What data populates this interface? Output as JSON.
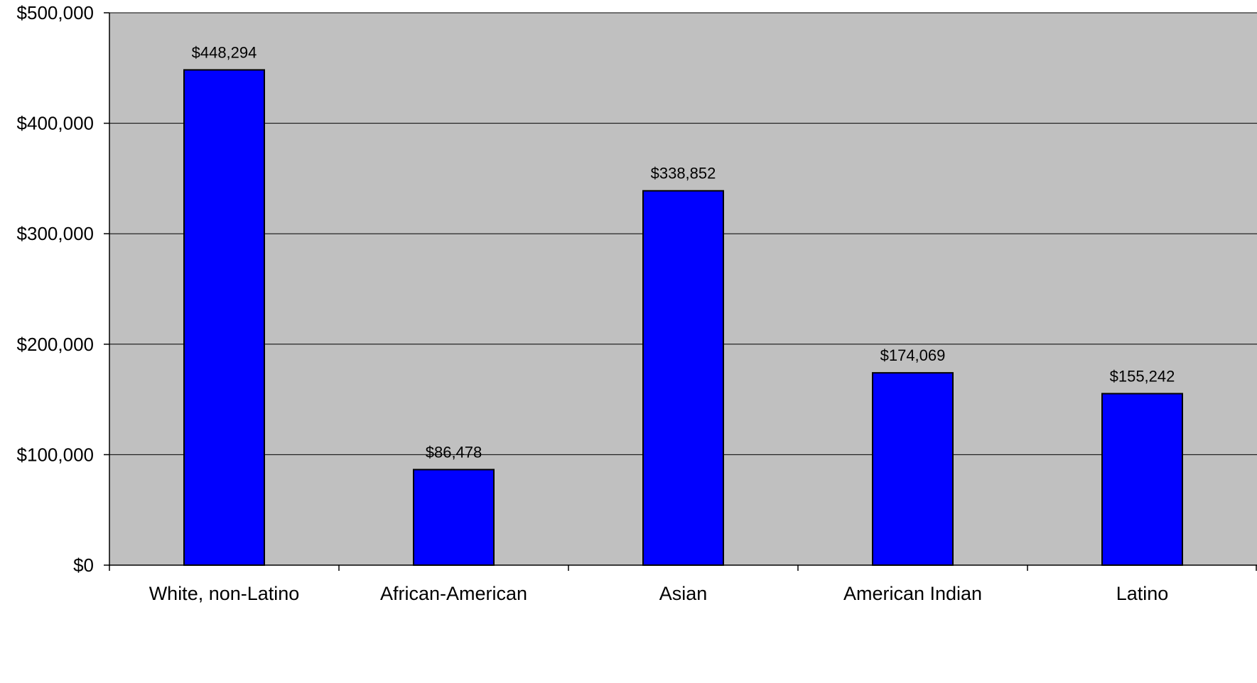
{
  "chart_data": {
    "type": "bar",
    "categories": [
      "White, non-Latino",
      "African-American",
      "Asian",
      "American Indian",
      "Latino"
    ],
    "values": [
      448294,
      86478,
      338852,
      174069,
      155242
    ],
    "data_labels": [
      "$448,294",
      "$86,478",
      "$338,852",
      "$174,069",
      "$155,242"
    ],
    "ylim": [
      0,
      500000
    ],
    "yticks": [
      0,
      100000,
      200000,
      300000,
      400000,
      500000
    ],
    "ytick_labels": [
      "$0",
      "$100,000",
      "$200,000",
      "$300,000",
      "$400,000",
      "$500,000"
    ],
    "title": "",
    "xlabel": "",
    "ylabel": "",
    "grid": true,
    "legend": "none",
    "colors": {
      "plot_background": "#c0c0c0",
      "bar_fill": "#0000ff",
      "bar_stroke": "#000000",
      "gridline": "#000000"
    }
  }
}
